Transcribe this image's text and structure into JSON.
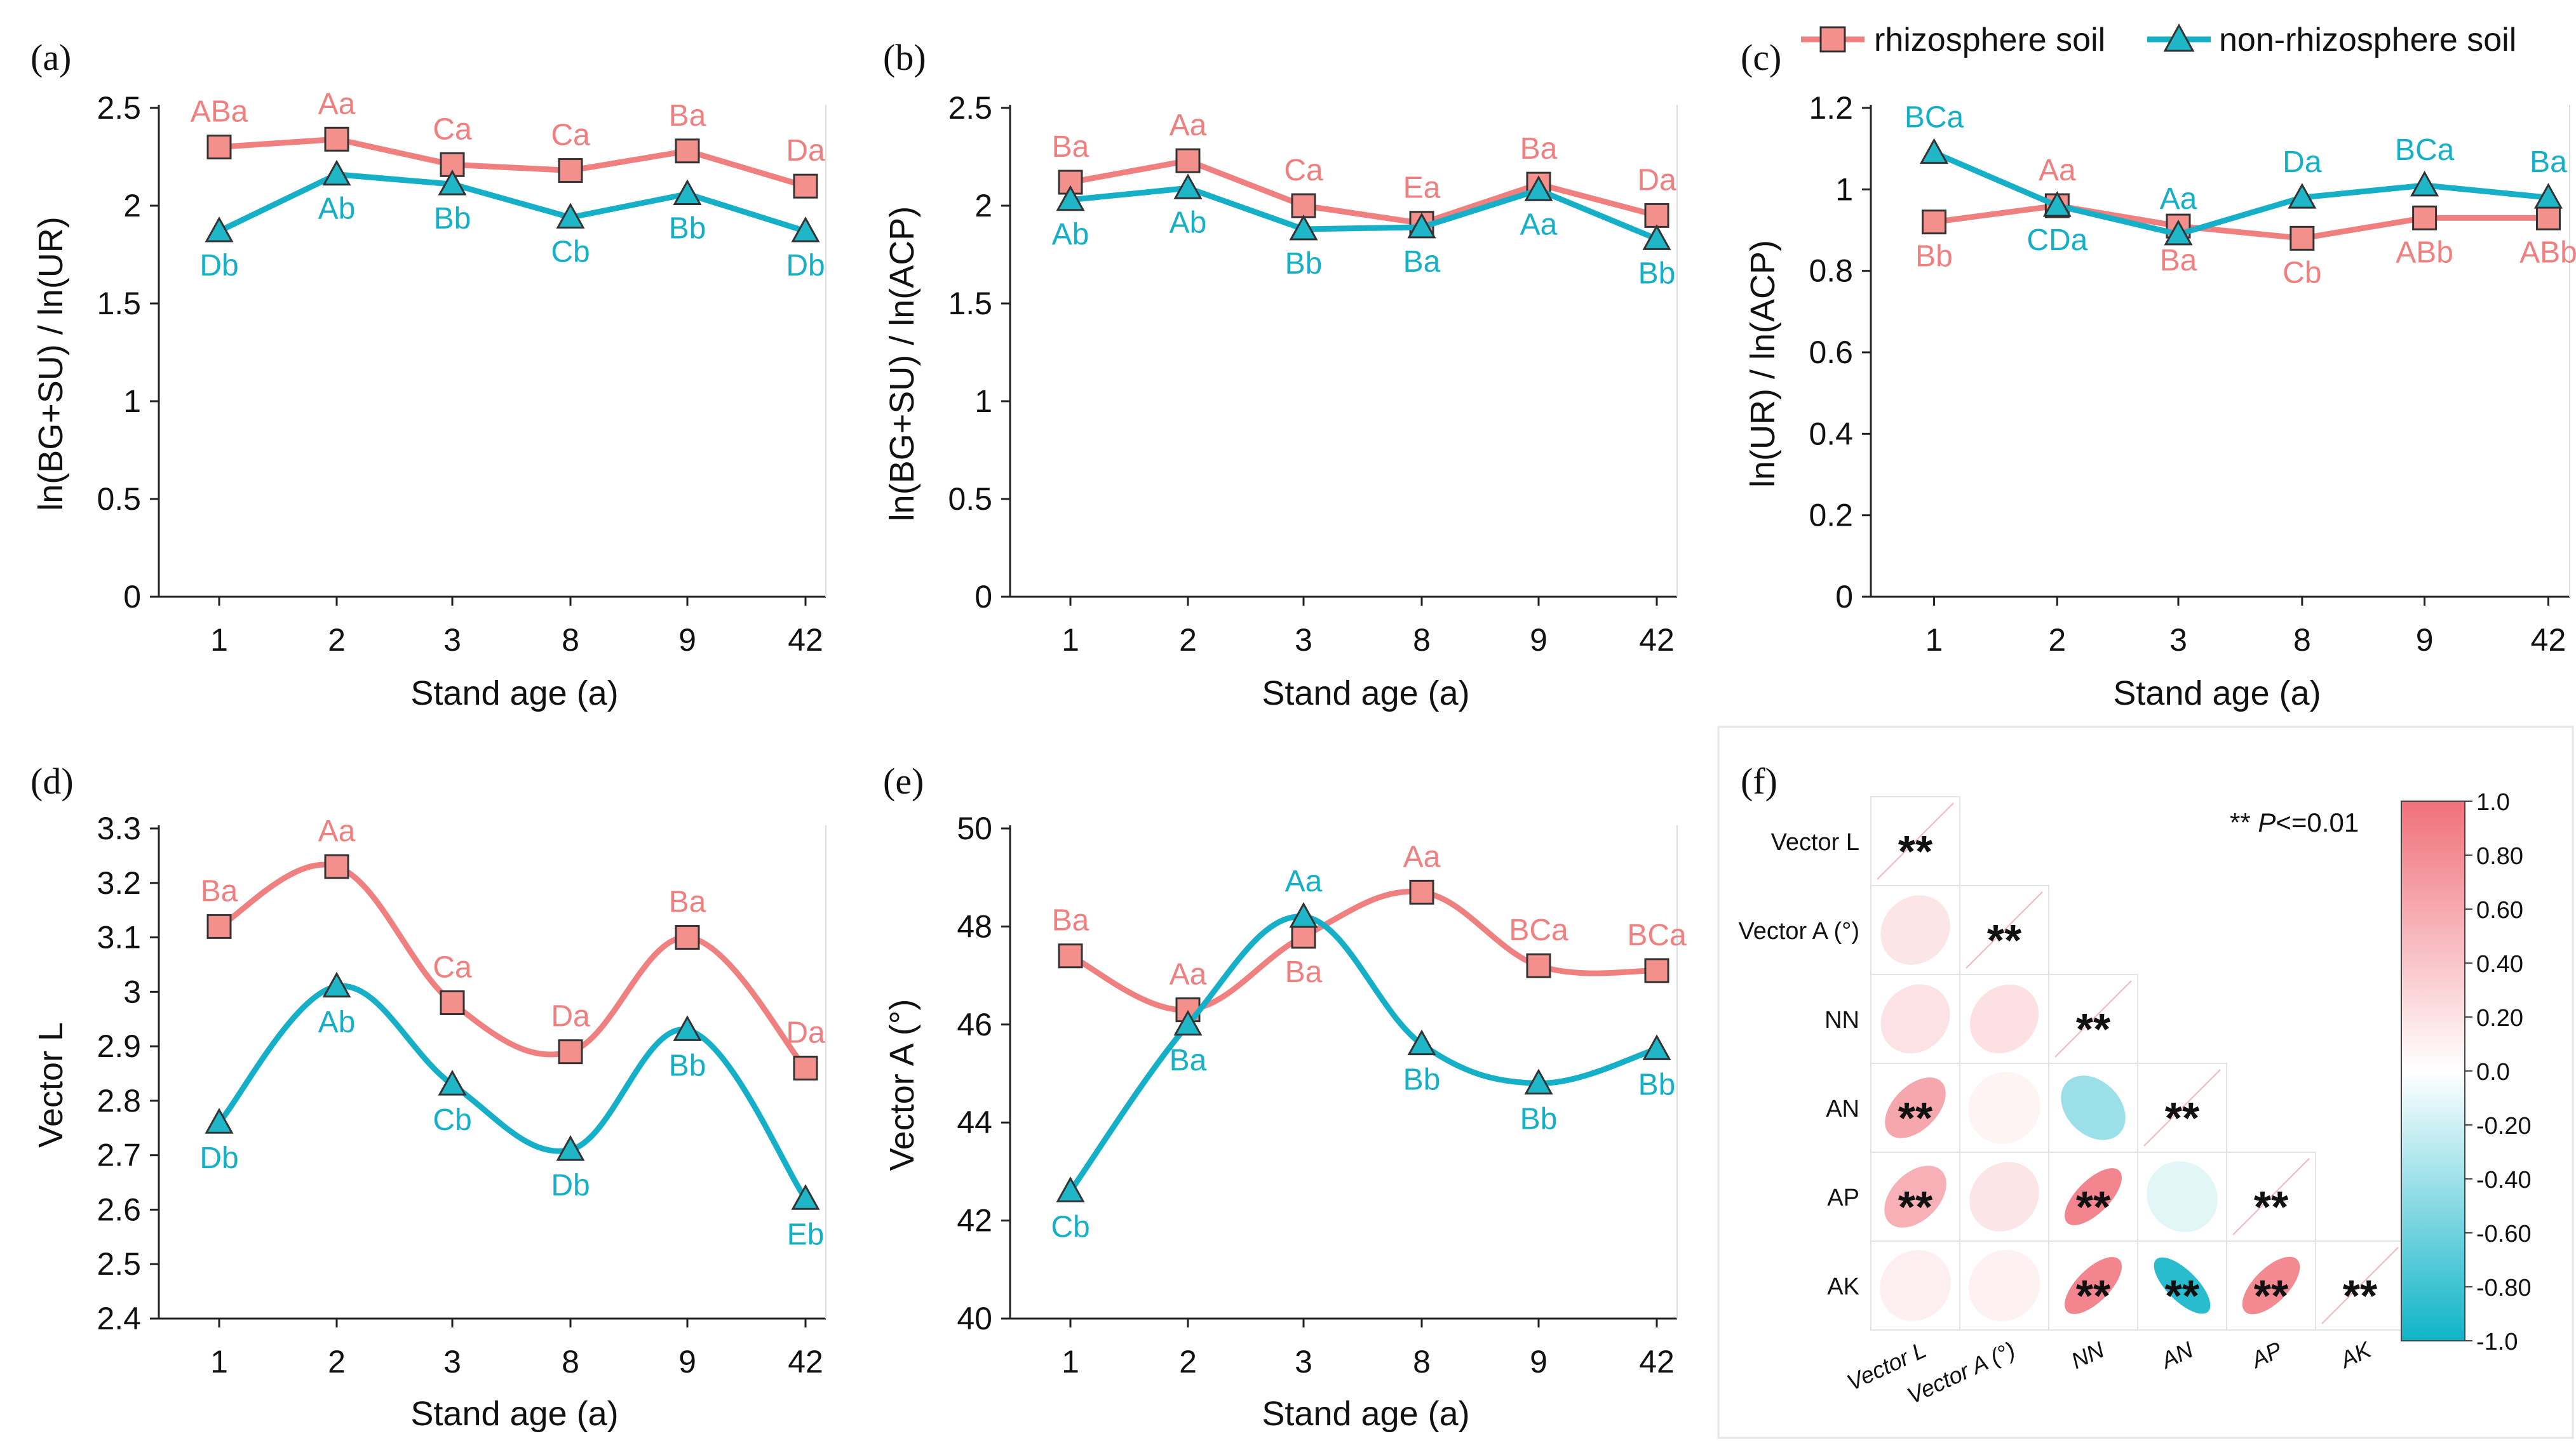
{
  "colors": {
    "rhizosphere": "#f08080",
    "rhizosphere_marker": "#f4908c",
    "non_rhizosphere": "#15b0c8",
    "non_rhizosphere_marker": "#1fb6c8",
    "scale_positive": "#f0707a",
    "scale_zero": "#ffffff",
    "scale_negative": "#10b4c8"
  },
  "legend": {
    "rhizosphere": "rhizosphere soil",
    "non_rhizosphere": "non-rhizosphere soil"
  },
  "chart_data": [
    {
      "id": "a",
      "panel_label": "(a)",
      "type": "line",
      "categories": [
        "1",
        "2",
        "3",
        "8",
        "9",
        "42"
      ],
      "xlabel": "Stand age (a)",
      "ylabel": "ln(BG+SU) / ln(UR)",
      "ylim": [
        0,
        2.5
      ],
      "yticks": [
        "0",
        "0.5",
        "1",
        "1.5",
        "2",
        "2.5"
      ],
      "yticks_v": [
        0,
        0.5,
        1,
        1.5,
        2,
        2.5
      ],
      "smooth": false,
      "series": [
        {
          "name": "rhizosphere soil",
          "values": [
            2.3,
            2.34,
            2.21,
            2.18,
            2.28,
            2.1
          ],
          "letters": [
            "ABa",
            "Aa",
            "Ca",
            "Ca",
            "Ba",
            "Da"
          ]
        },
        {
          "name": "non-rhizosphere soil",
          "values": [
            1.87,
            2.16,
            2.11,
            1.94,
            2.06,
            1.87
          ],
          "letters": [
            "Db",
            "Ab",
            "Bb",
            "Cb",
            "Bb",
            "Db"
          ]
        }
      ]
    },
    {
      "id": "b",
      "panel_label": "(b)",
      "type": "line",
      "categories": [
        "1",
        "2",
        "3",
        "8",
        "9",
        "42"
      ],
      "xlabel": "Stand age (a)",
      "ylabel": "ln(BG+SU) / ln(ACP)",
      "ylim": [
        0,
        2.5
      ],
      "yticks": [
        "0",
        "0.5",
        "1",
        "1.5",
        "2",
        "2.5"
      ],
      "yticks_v": [
        0,
        0.5,
        1,
        1.5,
        2,
        2.5
      ],
      "smooth": false,
      "series": [
        {
          "name": "rhizosphere soil",
          "values": [
            2.12,
            2.23,
            2.0,
            1.91,
            2.11,
            1.95
          ],
          "letters": [
            "Ba",
            "Aa",
            "Ca",
            "Ea",
            "Ba",
            "Da"
          ]
        },
        {
          "name": "non-rhizosphere soil",
          "values": [
            2.03,
            2.09,
            1.88,
            1.89,
            2.08,
            1.83
          ],
          "letters": [
            "Ab",
            "Ab",
            "Bb",
            "Ba",
            "Aa",
            "Bb"
          ]
        }
      ]
    },
    {
      "id": "c",
      "panel_label": "(c)",
      "type": "line",
      "categories": [
        "1",
        "2",
        "3",
        "8",
        "9",
        "42"
      ],
      "xlabel": "Stand age (a)",
      "ylabel": "ln(UR) / ln(ACP)",
      "ylim": [
        0,
        1.2
      ],
      "yticks": [
        "0",
        "0.2",
        "0.4",
        "0.6",
        "0.8",
        "1",
        "1.2"
      ],
      "yticks_v": [
        0,
        0.2,
        0.4,
        0.6,
        0.8,
        1.0,
        1.2
      ],
      "smooth": false,
      "series": [
        {
          "name": "rhizosphere soil",
          "values": [
            0.92,
            0.96,
            0.91,
            0.88,
            0.93,
            0.93
          ],
          "letters": [
            "Bb",
            "Aa",
            "Ba",
            "Cb",
            "ABb",
            "ABb"
          ]
        },
        {
          "name": "non-rhizosphere soil",
          "values": [
            1.09,
            0.96,
            0.89,
            0.98,
            1.01,
            0.98
          ],
          "letters": [
            "BCa",
            "CDa",
            "Aa",
            "Da",
            "BCa",
            "Ba"
          ]
        }
      ]
    },
    {
      "id": "d",
      "panel_label": "(d)",
      "type": "line",
      "categories": [
        "1",
        "2",
        "3",
        "8",
        "9",
        "42"
      ],
      "xlabel": "Stand age (a)",
      "ylabel": "Vector L",
      "ylim": [
        2.4,
        3.3
      ],
      "yticks": [
        "2.4",
        "2.5",
        "2.6",
        "2.7",
        "2.8",
        "2.9",
        "3",
        "3.1",
        "3.2",
        "3.3"
      ],
      "yticks_v": [
        2.4,
        2.5,
        2.6,
        2.7,
        2.8,
        2.9,
        3.0,
        3.1,
        3.2,
        3.3
      ],
      "smooth": true,
      "series": [
        {
          "name": "rhizosphere soil",
          "values": [
            3.12,
            3.23,
            2.98,
            2.89,
            3.1,
            2.86
          ],
          "letters": [
            "Ba",
            "Aa",
            "Ca",
            "Da",
            "Ba",
            "Da"
          ]
        },
        {
          "name": "non-rhizosphere soil",
          "values": [
            2.76,
            3.01,
            2.83,
            2.71,
            2.93,
            2.62
          ],
          "letters": [
            "Db",
            "Ab",
            "Cb",
            "Db",
            "Bb",
            "Eb"
          ]
        }
      ]
    },
    {
      "id": "e",
      "panel_label": "(e)",
      "type": "line",
      "categories": [
        "1",
        "2",
        "3",
        "8",
        "9",
        "42"
      ],
      "xlabel": "Stand age (a)",
      "ylabel": "Vector A (°)",
      "ylim": [
        40,
        50
      ],
      "yticks": [
        "40",
        "42",
        "44",
        "46",
        "48",
        "50"
      ],
      "yticks_v": [
        40,
        42,
        44,
        46,
        48,
        50
      ],
      "smooth": true,
      "series": [
        {
          "name": "rhizosphere soil",
          "values": [
            47.4,
            46.3,
            47.8,
            48.7,
            47.2,
            47.1
          ],
          "letters": [
            "Ba",
            "Aa",
            "Ba",
            "Aa",
            "BCa",
            "BCa"
          ]
        },
        {
          "name": "non-rhizosphere soil",
          "values": [
            42.6,
            46.0,
            48.2,
            45.6,
            44.8,
            45.5
          ],
          "letters": [
            "Cb",
            "Ba",
            "Aa",
            "Bb",
            "Bb",
            "Bb"
          ]
        }
      ]
    },
    {
      "id": "f",
      "panel_label": "(f)",
      "type": "heatmap",
      "variables_y": [
        "Vector L",
        "Vector A (°)",
        "NN",
        "AN",
        "AP",
        "AK"
      ],
      "variables_x": [
        "Vector L",
        "Vector A (°)",
        "NN",
        "AN",
        "AP",
        "AK"
      ],
      "correlations": [
        [
          1.0,
          null,
          null,
          null,
          null,
          null
        ],
        [
          0.18,
          1.0,
          null,
          null,
          null,
          null
        ],
        [
          0.2,
          0.22,
          1.0,
          null,
          null,
          null
        ],
        [
          0.62,
          0.08,
          -0.42,
          1.0,
          null,
          null
        ],
        [
          0.55,
          0.18,
          0.85,
          -0.12,
          1.0,
          null
        ],
        [
          0.12,
          0.1,
          0.85,
          -0.9,
          0.82,
          1.0
        ]
      ],
      "significant": [
        [
          true,
          false,
          false,
          false,
          false,
          false
        ],
        [
          false,
          true,
          false,
          false,
          false,
          false
        ],
        [
          false,
          false,
          true,
          false,
          false,
          false
        ],
        [
          true,
          false,
          false,
          true,
          false,
          false
        ],
        [
          true,
          false,
          true,
          false,
          true,
          false
        ],
        [
          false,
          false,
          true,
          true,
          true,
          true
        ]
      ],
      "star": "**",
      "note_prefix": "** ",
      "note_italic": "P",
      "note_suffix": "<=0.01",
      "scale_range": [
        -1.0,
        1.0
      ],
      "scale_ticks": [
        "1.0",
        "0.80",
        "0.60",
        "0.40",
        "0.20",
        "0.0",
        "-0.20",
        "-0.40",
        "-0.60",
        "-0.80",
        "-1.0"
      ],
      "scale_ticks_v": [
        1.0,
        0.8,
        0.6,
        0.4,
        0.2,
        0.0,
        -0.2,
        -0.4,
        -0.6,
        -0.8,
        -1.0
      ]
    }
  ]
}
